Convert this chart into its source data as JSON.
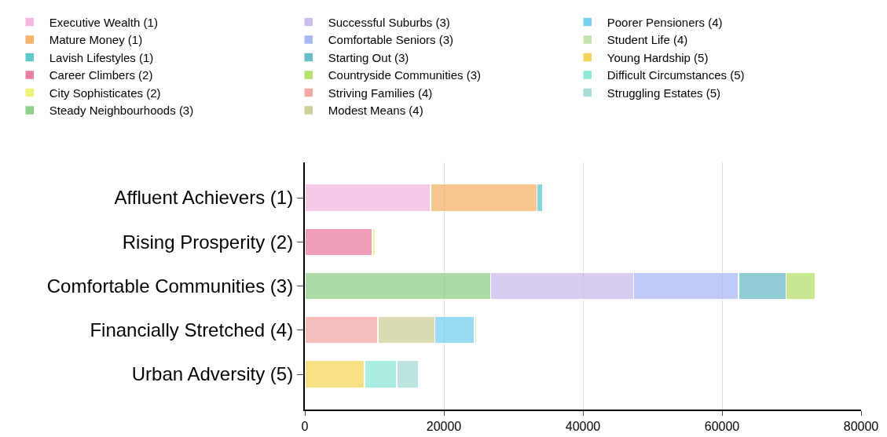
{
  "chart_data": {
    "type": "bar",
    "orientation": "horizontal",
    "stacked": true,
    "categories": [
      "Affluent Achievers (1)",
      "Rising Prosperity (2)",
      "Comfortable Communities (3)",
      "Financially Stretched (4)",
      "Urban Adversity (5)"
    ],
    "series": [
      {
        "name": "Executive Wealth (1)",
        "color": "#f4b6e0",
        "values": [
          18100,
          null,
          null,
          null,
          null
        ]
      },
      {
        "name": "Mature Money (1)",
        "color": "#f5b26b",
        "values": [
          15300,
          null,
          null,
          null,
          null
        ]
      },
      {
        "name": "Lavish Lifestyles (1)",
        "color": "#5bc8cc",
        "values": [
          800,
          null,
          null,
          null,
          null
        ]
      },
      {
        "name": "Career Climbers (2)",
        "color": "#e87d9e",
        "values": [
          null,
          9700,
          null,
          null,
          null
        ]
      },
      {
        "name": "City Sophisticates (2)",
        "color": "#eef27a",
        "values": [
          null,
          400,
          null,
          null,
          null
        ]
      },
      {
        "name": "Steady Neighbourhoods (3)",
        "color": "#8fcf8a",
        "values": [
          null,
          null,
          26700,
          null,
          null
        ]
      },
      {
        "name": "Successful Suburbs (3)",
        "color": "#cbbcec",
        "values": [
          null,
          null,
          20600,
          null,
          null
        ]
      },
      {
        "name": "Comfortable Seniors (3)",
        "color": "#a9b8f5",
        "values": [
          null,
          null,
          15100,
          null,
          null
        ]
      },
      {
        "name": "Starting Out (3)",
        "color": "#6bbcc6",
        "values": [
          null,
          null,
          6800,
          null,
          null
        ]
      },
      {
        "name": "Countryside Communities (3)",
        "color": "#b5e06b",
        "values": [
          null,
          null,
          4200,
          null,
          null
        ]
      },
      {
        "name": "Striving Families (4)",
        "color": "#f4a8a8",
        "values": [
          null,
          null,
          null,
          10500,
          null
        ]
      },
      {
        "name": "Modest Means (4)",
        "color": "#cfcf9a",
        "values": [
          null,
          null,
          null,
          8200,
          null
        ]
      },
      {
        "name": "Poorer Pensioners (4)",
        "color": "#76d0ee",
        "values": [
          null,
          null,
          null,
          5700,
          null
        ]
      },
      {
        "name": "Student Life (4)",
        "color": "#c6e3b0",
        "values": [
          null,
          null,
          null,
          300,
          null
        ]
      },
      {
        "name": "Young Hardship (5)",
        "color": "#f5d65a",
        "values": [
          null,
          null,
          null,
          null,
          8600
        ]
      },
      {
        "name": "Difficult Circumstances (5)",
        "color": "#8de8d6",
        "values": [
          null,
          null,
          null,
          null,
          4600
        ]
      },
      {
        "name": "Struggling Estates (5)",
        "color": "#a8dcd4",
        "values": [
          null,
          null,
          null,
          null,
          3100
        ]
      }
    ],
    "xlim": [
      0,
      80000
    ],
    "xticks": [
      0,
      20000,
      40000,
      60000,
      80000
    ],
    "grid": "x",
    "legend": "top left"
  }
}
